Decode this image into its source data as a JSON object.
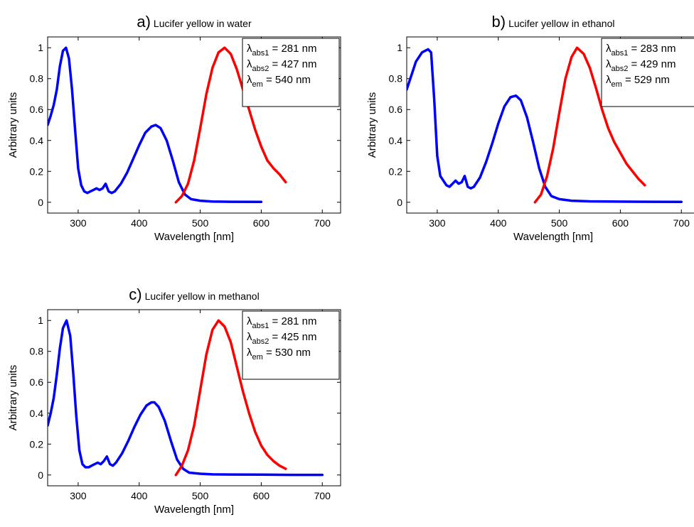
{
  "chart_data": [
    {
      "type": "line",
      "panel_letter": "a)",
      "title": "Lucifer yellow in water",
      "xlabel": "Wavelength [nm]",
      "ylabel": "Arbitrary units",
      "xlim": [
        250,
        730
      ],
      "ylim": [
        -0.07,
        1.07
      ],
      "xticks": [
        300,
        400,
        500,
        600,
        700
      ],
      "yticks": [
        0,
        0.2,
        0.4,
        0.6,
        0.8,
        1
      ],
      "grid": false,
      "legend_position": "top-right",
      "annotation": [
        {
          "sym": "λ",
          "sub": "abs1",
          "text": " = 281 nm"
        },
        {
          "sym": "λ",
          "sub": "abs2",
          "text": " = 427 nm"
        },
        {
          "sym": "λ",
          "sub": "em",
          "text": " = 540 nm"
        }
      ],
      "series": [
        {
          "color": "#0000ff",
          "x": [
            250,
            255,
            260,
            265,
            270,
            275,
            280,
            285,
            290,
            295,
            300,
            305,
            310,
            315,
            320,
            325,
            330,
            335,
            340,
            345,
            350,
            355,
            360,
            370,
            380,
            390,
            400,
            410,
            420,
            427,
            435,
            445,
            455,
            465,
            475,
            485,
            500,
            520,
            550,
            600
          ],
          "y": [
            0.5,
            0.56,
            0.63,
            0.73,
            0.88,
            0.98,
            1.0,
            0.93,
            0.73,
            0.47,
            0.22,
            0.11,
            0.07,
            0.06,
            0.07,
            0.08,
            0.09,
            0.08,
            0.09,
            0.12,
            0.07,
            0.06,
            0.07,
            0.12,
            0.19,
            0.28,
            0.37,
            0.45,
            0.49,
            0.5,
            0.48,
            0.4,
            0.27,
            0.13,
            0.05,
            0.02,
            0.01,
            0.005,
            0.003,
            0.002
          ]
        },
        {
          "color": "#ff0000",
          "x": [
            460,
            470,
            480,
            490,
            500,
            510,
            520,
            530,
            540,
            550,
            560,
            570,
            580,
            590,
            600,
            610,
            620,
            630,
            640
          ],
          "y": [
            0.0,
            0.04,
            0.12,
            0.27,
            0.48,
            0.7,
            0.87,
            0.97,
            1.0,
            0.96,
            0.86,
            0.73,
            0.6,
            0.47,
            0.36,
            0.27,
            0.22,
            0.18,
            0.13
          ]
        }
      ]
    },
    {
      "type": "line",
      "panel_letter": "b)",
      "title": "Lucifer yellow in ethanol",
      "xlabel": "Wavelength [nm]",
      "ylabel": "Arbitrary units",
      "xlim": [
        250,
        730
      ],
      "ylim": [
        -0.07,
        1.07
      ],
      "xticks": [
        300,
        400,
        500,
        600,
        700
      ],
      "yticks": [
        0,
        0.2,
        0.4,
        0.6,
        0.8,
        1
      ],
      "grid": false,
      "legend_position": "top-right",
      "annotation": [
        {
          "sym": "λ",
          "sub": "abs1",
          "text": " = 283 nm"
        },
        {
          "sym": "λ",
          "sub": "abs2",
          "text": " = 429 nm"
        },
        {
          "sym": "λ",
          "sub": "em",
          "text": " = 529 nm"
        }
      ],
      "series": [
        {
          "color": "#0000ff",
          "x": [
            250,
            255,
            260,
            265,
            270,
            275,
            280,
            285,
            290,
            295,
            300,
            305,
            310,
            315,
            320,
            325,
            330,
            335,
            340,
            345,
            350,
            355,
            360,
            370,
            380,
            390,
            400,
            410,
            420,
            429,
            437,
            447,
            457,
            467,
            477,
            487,
            500,
            520,
            550,
            600,
            650,
            700
          ],
          "y": [
            0.73,
            0.79,
            0.85,
            0.91,
            0.94,
            0.97,
            0.98,
            0.99,
            0.97,
            0.67,
            0.3,
            0.17,
            0.14,
            0.11,
            0.1,
            0.12,
            0.14,
            0.12,
            0.13,
            0.17,
            0.1,
            0.09,
            0.1,
            0.16,
            0.26,
            0.38,
            0.51,
            0.62,
            0.68,
            0.69,
            0.66,
            0.55,
            0.39,
            0.22,
            0.1,
            0.04,
            0.02,
            0.01,
            0.006,
            0.004,
            0.003,
            0.002
          ]
        },
        {
          "color": "#ff0000",
          "x": [
            460,
            470,
            480,
            490,
            500,
            510,
            520,
            529,
            540,
            550,
            560,
            570,
            580,
            590,
            600,
            610,
            620,
            630,
            640
          ],
          "y": [
            0.0,
            0.05,
            0.17,
            0.35,
            0.58,
            0.8,
            0.94,
            1.0,
            0.96,
            0.87,
            0.74,
            0.6,
            0.48,
            0.39,
            0.32,
            0.25,
            0.2,
            0.15,
            0.11
          ]
        }
      ]
    },
    {
      "type": "line",
      "panel_letter": "c)",
      "title": "Lucifer yellow in methanol",
      "xlabel": "Wavelength [nm]",
      "ylabel": "Arbitrary units",
      "xlim": [
        250,
        730
      ],
      "ylim": [
        -0.07,
        1.07
      ],
      "xticks": [
        300,
        400,
        500,
        600,
        700
      ],
      "yticks": [
        0,
        0.2,
        0.4,
        0.6,
        0.8,
        1
      ],
      "grid": false,
      "legend_position": "top-right",
      "annotation": [
        {
          "sym": "λ",
          "sub": "abs1",
          "text": " = 281 nm"
        },
        {
          "sym": "λ",
          "sub": "abs2",
          "text": " = 425 nm"
        },
        {
          "sym": "λ",
          "sub": "em",
          "text": " = 530 nm"
        }
      ],
      "series": [
        {
          "color": "#0000ff",
          "x": [
            250,
            255,
            260,
            265,
            270,
            275,
            281,
            287,
            292,
            297,
            302,
            307,
            312,
            317,
            322,
            327,
            332,
            337,
            342,
            347,
            352,
            357,
            362,
            372,
            382,
            392,
            402,
            412,
            420,
            425,
            432,
            442,
            452,
            462,
            472,
            482,
            500,
            520,
            550,
            600,
            650,
            700
          ],
          "y": [
            0.32,
            0.4,
            0.5,
            0.65,
            0.82,
            0.95,
            1.0,
            0.9,
            0.66,
            0.38,
            0.16,
            0.07,
            0.05,
            0.05,
            0.06,
            0.07,
            0.08,
            0.07,
            0.09,
            0.12,
            0.07,
            0.06,
            0.08,
            0.14,
            0.22,
            0.31,
            0.39,
            0.45,
            0.47,
            0.47,
            0.44,
            0.35,
            0.22,
            0.1,
            0.04,
            0.015,
            0.008,
            0.004,
            0.003,
            0.002,
            0.001,
            0.001
          ]
        },
        {
          "color": "#ff0000",
          "x": [
            460,
            470,
            480,
            490,
            500,
            510,
            520,
            530,
            540,
            550,
            560,
            570,
            580,
            590,
            600,
            610,
            620,
            630,
            640
          ],
          "y": [
            0.0,
            0.06,
            0.16,
            0.32,
            0.55,
            0.78,
            0.94,
            1.0,
            0.96,
            0.86,
            0.7,
            0.54,
            0.4,
            0.28,
            0.19,
            0.13,
            0.09,
            0.06,
            0.04
          ]
        }
      ]
    }
  ]
}
